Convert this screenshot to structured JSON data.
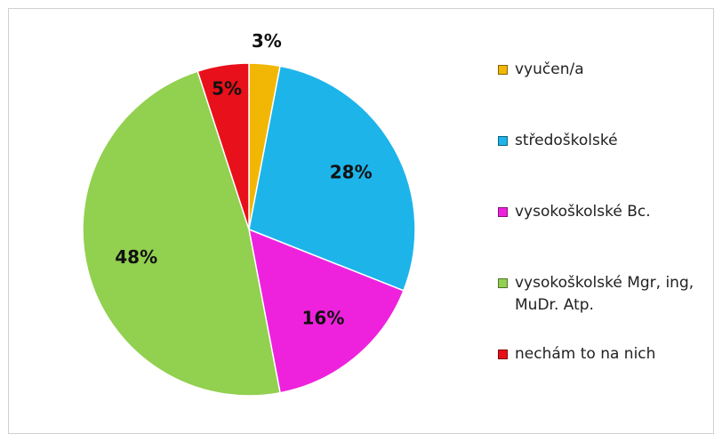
{
  "chart_data": {
    "type": "pie",
    "categories": [
      "vyučen/a",
      "středoškolské",
      "vysokoškolské Bc.",
      "vysokoškolské Mgr, ing, MuDr. Atp.",
      "nechám to na nich"
    ],
    "values": [
      3,
      28,
      16,
      48,
      5
    ],
    "value_labels": [
      "3%",
      "28%",
      "16%",
      "48%",
      "5%"
    ],
    "colors": [
      "#f2b705",
      "#1db4ea",
      "#ee22dd",
      "#92d050",
      "#e8101a"
    ],
    "legend": "right"
  }
}
